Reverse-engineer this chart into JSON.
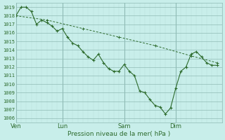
{
  "title": "",
  "xlabel": "Pression niveau de la mer( hPa )",
  "ylabel": "",
  "bg_color": "#c8eeea",
  "grid_color_minor": "#b8ddd8",
  "grid_color_major": "#90bbb5",
  "line_color": "#2d6b2d",
  "ylim": [
    1005.5,
    1019.5
  ],
  "yticks": [
    1006,
    1007,
    1008,
    1009,
    1010,
    1011,
    1012,
    1013,
    1014,
    1015,
    1016,
    1017,
    1018,
    1019
  ],
  "xtick_labels": [
    "Ven",
    "Lun",
    "Sam",
    "Dim"
  ],
  "xtick_positions": [
    0,
    9,
    21,
    31
  ],
  "xlim": [
    0,
    40
  ],
  "vline_positions": [
    0,
    9,
    21,
    31
  ],
  "line1_x": [
    0,
    1,
    2,
    3,
    4,
    5,
    6,
    7,
    8,
    9,
    10,
    11,
    12,
    13,
    14,
    15,
    16,
    17,
    18,
    19,
    20,
    21,
    22,
    23,
    24,
    25,
    26,
    27,
    28,
    29,
    30,
    31,
    32,
    33,
    34,
    35,
    36,
    37,
    38,
    39
  ],
  "line1": [
    1018.0,
    1019.0,
    1019.0,
    1018.5,
    1017.0,
    1017.5,
    1017.2,
    1016.8,
    1016.2,
    1016.5,
    1015.5,
    1014.8,
    1014.5,
    1013.8,
    1013.2,
    1012.8,
    1013.5,
    1012.5,
    1011.8,
    1011.5,
    1011.5,
    1012.3,
    1011.5,
    1011.0,
    1009.2,
    1009.0,
    1008.2,
    1007.5,
    1007.3,
    1006.5,
    1007.2,
    1009.5,
    1011.5,
    1012.0,
    1013.5,
    1013.8,
    1013.2,
    1012.5,
    1012.2,
    1012.2
  ],
  "line2_x": [
    0,
    6,
    13,
    20,
    27,
    34,
    39
  ],
  "line2": [
    1018.0,
    1017.5,
    1016.5,
    1015.5,
    1014.5,
    1013.3,
    1012.5
  ]
}
